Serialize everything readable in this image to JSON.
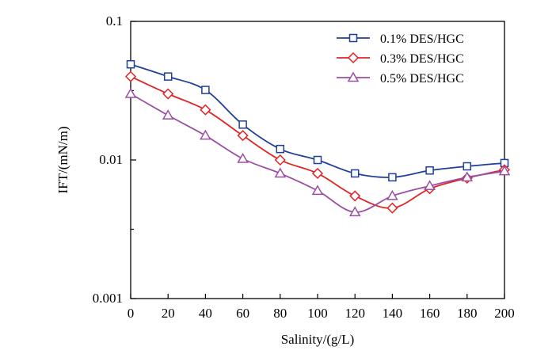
{
  "chart_data": {
    "type": "line",
    "title": "",
    "xlabel": "Salinity/(g/L)",
    "ylabel": "IFT/(mN/m)",
    "xlim": [
      0,
      200
    ],
    "ylim": [
      0.001,
      0.1
    ],
    "yscale": "log",
    "x_ticks": [
      0,
      20,
      40,
      60,
      80,
      100,
      120,
      140,
      160,
      180,
      200
    ],
    "x_tick_labels": [
      "0",
      "20",
      "40",
      "60",
      "80",
      "100",
      "120",
      "140",
      "160",
      "180",
      "200"
    ],
    "y_ticks": [
      0.001,
      0.01,
      0.1
    ],
    "y_tick_labels": [
      "0.001",
      "0.01",
      "0.1"
    ],
    "grid": false,
    "legend_position": "top-right",
    "series": [
      {
        "name": "0.1% DES/HGC",
        "marker": "square",
        "color": "#1f3f99",
        "x": [
          0,
          20,
          40,
          60,
          80,
          100,
          120,
          140,
          160,
          180,
          200
        ],
        "values": [
          0.049,
          0.04,
          0.032,
          0.018,
          0.012,
          0.01,
          0.008,
          0.0075,
          0.0084,
          0.009,
          0.0095
        ]
      },
      {
        "name": "0.3% DES/HGC",
        "marker": "diamond",
        "color": "#e02424",
        "x": [
          0,
          20,
          40,
          60,
          80,
          100,
          120,
          140,
          160,
          180,
          200
        ],
        "values": [
          0.04,
          0.03,
          0.023,
          0.015,
          0.01,
          0.008,
          0.0055,
          0.0045,
          0.0062,
          0.0074,
          0.0085
        ]
      },
      {
        "name": "0.5% DES/HGC",
        "marker": "triangle",
        "color": "#9b4fa3",
        "x": [
          0,
          20,
          40,
          60,
          80,
          100,
          120,
          140,
          160,
          180,
          200
        ],
        "values": [
          0.03,
          0.021,
          0.015,
          0.0102,
          0.008,
          0.006,
          0.0042,
          0.0055,
          0.0065,
          0.0075,
          0.0083
        ]
      }
    ]
  }
}
